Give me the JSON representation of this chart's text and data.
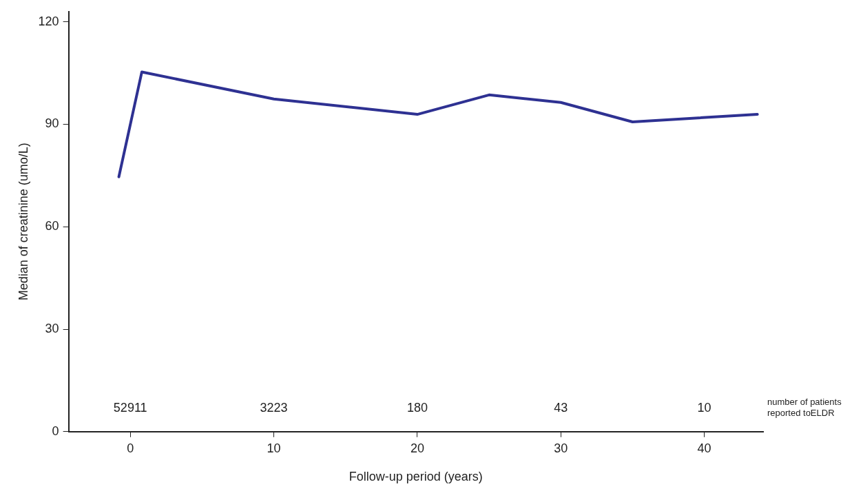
{
  "chart_data": {
    "type": "line",
    "xlabel": "Follow-up period (years)",
    "ylabel": "Median of creatinine (umo/L)",
    "x": [
      -0.8,
      0.8,
      10,
      20,
      25,
      30,
      35,
      43.7
    ],
    "series": [
      {
        "color": "#2e3192",
        "values": [
          74.6,
          105.3,
          97.4,
          92.9,
          98.6,
          96.4,
          90.7,
          92.9
        ]
      }
    ],
    "xlim": [
      -4.3,
      44.1
    ],
    "xticks": [
      0,
      10,
      20,
      30,
      40
    ],
    "ylim": [
      0,
      123
    ],
    "yticks": [
      0,
      30,
      60,
      90,
      120
    ],
    "grid": false,
    "legend": false,
    "marker": "none",
    "line_style": "solid",
    "annotations": [
      "52911",
      "3223",
      "180",
      "43",
      "10",
      "number of patients reported toELDR"
    ]
  }
}
